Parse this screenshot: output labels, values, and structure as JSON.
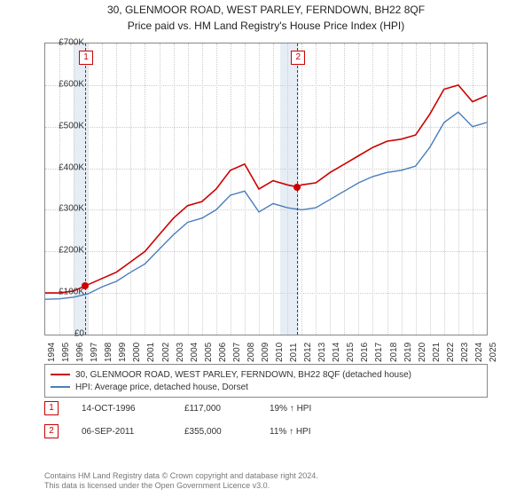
{
  "title_line1": "30, GLENMOOR ROAD, WEST PARLEY, FERNDOWN, BH22 8QF",
  "title_line2": "Price paid vs. HM Land Registry's House Price Index (HPI)",
  "chart": {
    "type": "line",
    "background_color": "#ffffff",
    "grid_color": "#cccccc",
    "band_fill": "#e6edf5",
    "border_color": "#888888",
    "x": {
      "min": 1994,
      "max": 2025,
      "ticks": [
        1994,
        1995,
        1996,
        1997,
        1998,
        1999,
        2000,
        2001,
        2002,
        2003,
        2004,
        2005,
        2006,
        2007,
        2008,
        2009,
        2010,
        2011,
        2012,
        2013,
        2014,
        2015,
        2016,
        2017,
        2018,
        2019,
        2020,
        2021,
        2022,
        2023,
        2024,
        2025
      ],
      "tick_fontsize": 10
    },
    "y": {
      "min": 0,
      "max": 700000,
      "ticks": [
        0,
        100000,
        200000,
        300000,
        400000,
        500000,
        600000,
        700000
      ],
      "tick_labels": [
        "£0",
        "£100K",
        "£200K",
        "£300K",
        "£400K",
        "£500K",
        "£600K",
        "£700K"
      ],
      "tick_fontsize": 10
    },
    "bands": [
      {
        "from": 1996.0,
        "to": 1997.0
      },
      {
        "from": 2010.5,
        "to": 2011.8
      }
    ],
    "series": [
      {
        "name": "property",
        "label": "30, GLENMOOR ROAD, WEST PARLEY, FERNDOWN, BH22 8QF (detached house)",
        "color": "#cc0000",
        "line_width": 1.6,
        "data": [
          [
            1994,
            100000
          ],
          [
            1995,
            100000
          ],
          [
            1996,
            105000
          ],
          [
            1996.8,
            117000
          ],
          [
            1998,
            135000
          ],
          [
            1999,
            150000
          ],
          [
            2000,
            175000
          ],
          [
            2001,
            200000
          ],
          [
            2002,
            240000
          ],
          [
            2003,
            280000
          ],
          [
            2004,
            310000
          ],
          [
            2005,
            320000
          ],
          [
            2006,
            350000
          ],
          [
            2007,
            395000
          ],
          [
            2008,
            410000
          ],
          [
            2009,
            350000
          ],
          [
            2010,
            370000
          ],
          [
            2011,
            360000
          ],
          [
            2011.7,
            355000
          ],
          [
            2012,
            360000
          ],
          [
            2013,
            365000
          ],
          [
            2014,
            390000
          ],
          [
            2015,
            410000
          ],
          [
            2016,
            430000
          ],
          [
            2017,
            450000
          ],
          [
            2018,
            465000
          ],
          [
            2019,
            470000
          ],
          [
            2020,
            480000
          ],
          [
            2021,
            530000
          ],
          [
            2022,
            590000
          ],
          [
            2023,
            600000
          ],
          [
            2024,
            560000
          ],
          [
            2025,
            575000
          ]
        ]
      },
      {
        "name": "hpi",
        "label": "HPI: Average price, detached house, Dorset",
        "color": "#4a7ebb",
        "line_width": 1.4,
        "data": [
          [
            1994,
            85000
          ],
          [
            1995,
            86000
          ],
          [
            1996,
            90000
          ],
          [
            1997,
            98000
          ],
          [
            1998,
            115000
          ],
          [
            1999,
            128000
          ],
          [
            2000,
            150000
          ],
          [
            2001,
            170000
          ],
          [
            2002,
            205000
          ],
          [
            2003,
            240000
          ],
          [
            2004,
            270000
          ],
          [
            2005,
            280000
          ],
          [
            2006,
            300000
          ],
          [
            2007,
            335000
          ],
          [
            2008,
            345000
          ],
          [
            2009,
            295000
          ],
          [
            2010,
            315000
          ],
          [
            2011,
            305000
          ],
          [
            2012,
            300000
          ],
          [
            2013,
            305000
          ],
          [
            2014,
            325000
          ],
          [
            2015,
            345000
          ],
          [
            2016,
            365000
          ],
          [
            2017,
            380000
          ],
          [
            2018,
            390000
          ],
          [
            2019,
            395000
          ],
          [
            2020,
            405000
          ],
          [
            2021,
            450000
          ],
          [
            2022,
            510000
          ],
          [
            2023,
            535000
          ],
          [
            2024,
            500000
          ],
          [
            2025,
            510000
          ]
        ]
      }
    ],
    "markers": [
      {
        "n": "1",
        "x": 1996.8,
        "y": 117000,
        "color": "#cc0000"
      },
      {
        "n": "2",
        "x": 2011.7,
        "y": 355000,
        "color": "#cc0000"
      }
    ],
    "marker_label_top_offset": -32
  },
  "transactions": [
    {
      "n": "1",
      "date": "14-OCT-1996",
      "price": "£117,000",
      "delta": "19% ↑ HPI"
    },
    {
      "n": "2",
      "date": "06-SEP-2011",
      "price": "£355,000",
      "delta": "11% ↑ HPI"
    }
  ],
  "footer_line1": "Contains HM Land Registry data © Crown copyright and database right 2024.",
  "footer_line2": "This data is licensed under the Open Government Licence v3.0."
}
